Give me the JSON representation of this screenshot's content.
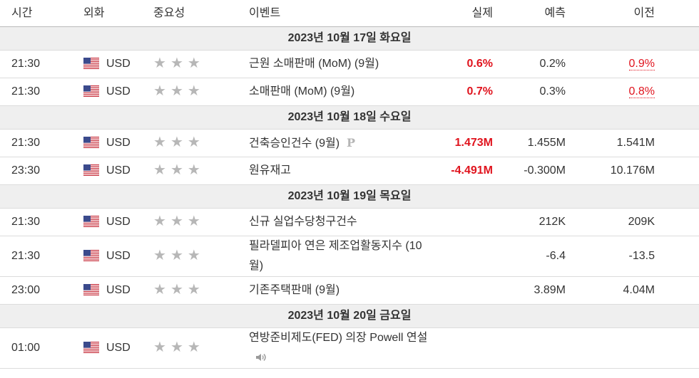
{
  "header": {
    "columns": [
      "시간",
      "외화",
      "중요성",
      "이벤트",
      "실제",
      "예측",
      "이전"
    ]
  },
  "days": [
    {
      "date": "2023년 10월 17일 화요일",
      "events": [
        {
          "time": "21:30",
          "currency": "USD",
          "event": "근원 소매판매 (MoM) (9월)",
          "actual": "0.6%",
          "forecast": "0.2%",
          "previous": "0.9%",
          "previous_color": "#e0141e"
        },
        {
          "time": "21:30",
          "currency": "USD",
          "event": "소매판매 (MoM) (9월)",
          "actual": "0.7%",
          "forecast": "0.3%",
          "previous": "0.8%",
          "previous_color": "#e0141e"
        }
      ]
    },
    {
      "date": "2023년 10월 18일 수요일",
      "events": [
        {
          "time": "21:30",
          "currency": "USD",
          "event": "건축승인건수 (9월)",
          "note": "P",
          "actual": "1.473M",
          "forecast": "1.455M",
          "previous": "1.541M"
        },
        {
          "time": "23:30",
          "currency": "USD",
          "event": "원유재고",
          "actual": "-4.491M",
          "forecast": "-0.300M",
          "previous": "10.176M"
        }
      ]
    },
    {
      "date": "2023년 10월 19일 목요일",
      "events": [
        {
          "time": "21:30",
          "currency": "USD",
          "event": "신규 실업수당청구건수",
          "forecast": "212K",
          "previous": "209K"
        },
        {
          "time": "21:30",
          "currency": "USD",
          "event": "필라델피아 연은 제조업활동지수 (10월)",
          "forecast": "-6.4",
          "previous": "-13.5"
        },
        {
          "time": "23:00",
          "currency": "USD",
          "event": "기존주택판매 (9월)",
          "forecast": "3.89M",
          "previous": "4.04M"
        }
      ]
    },
    {
      "date": "2023년 10월 20일 금요일",
      "events": [
        {
          "time": "01:00",
          "currency": "USD",
          "event": "연방준비제도(FED) 의장 Powell 연설",
          "audio": true
        }
      ]
    }
  ]
}
